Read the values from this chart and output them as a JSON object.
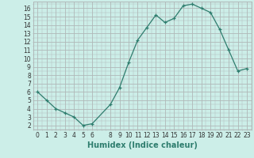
{
  "x": [
    0,
    1,
    2,
    3,
    4,
    5,
    6,
    8,
    9,
    10,
    11,
    12,
    13,
    14,
    15,
    16,
    17,
    18,
    19,
    20,
    21,
    22,
    23
  ],
  "y": [
    6.0,
    5.0,
    4.0,
    3.5,
    3.0,
    2.0,
    2.2,
    4.5,
    6.5,
    9.5,
    12.2,
    13.7,
    15.2,
    14.3,
    14.8,
    16.3,
    16.5,
    16.0,
    15.5,
    13.5,
    11.0,
    8.5,
    8.8
  ],
  "line_color": "#2e7d6e",
  "marker": "+",
  "bg_color": "#cceee8",
  "grid_color": "#b0b8b8",
  "xlabel": "Humidex (Indice chaleur)",
  "xlabel_fontsize": 7,
  "tick_fontsize": 5.5,
  "xlim": [
    -0.5,
    23.5
  ],
  "ylim": [
    1.5,
    16.8
  ],
  "yticks": [
    2,
    3,
    4,
    5,
    6,
    7,
    8,
    9,
    10,
    11,
    12,
    13,
    14,
    15,
    16
  ],
  "xticks": [
    0,
    1,
    2,
    3,
    4,
    5,
    6,
    8,
    9,
    10,
    11,
    12,
    13,
    14,
    15,
    16,
    17,
    18,
    19,
    20,
    21,
    22,
    23
  ]
}
